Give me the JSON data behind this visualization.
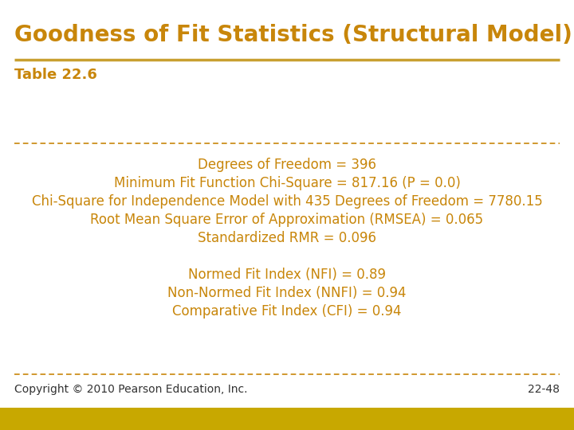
{
  "title": "Goodness of Fit Statistics (Structural Model)",
  "subtitle": "Table 22.6",
  "title_color": "#C8860A",
  "text_color": "#C8860A",
  "bg_color": "#FFFFFF",
  "footer_bg_color": "#C8A800",
  "title_fontsize": 20,
  "subtitle_fontsize": 13,
  "body_fontsize": 12,
  "footer_fontsize": 10,
  "top_rule_color": "#C8A030",
  "dashed_rule_color": "#C8860A",
  "body_lines": [
    "Degrees of Freedom = 396",
    "Minimum Fit Function Chi-Square = 817.16 (P = 0.0)",
    "Chi-Square for Independence Model with 435 Degrees of Freedom = 7780.15",
    "Root Mean Square Error of Approximation (RMSEA) = 0.065",
    "Standardized RMR = 0.096",
    "",
    "Normed Fit Index (NFI) = 0.89",
    "Non-Normed Fit Index (NNFI) = 0.94",
    "Comparative Fit Index (CFI) = 0.94"
  ],
  "footer_left": "Copyright © 2010 Pearson Education, Inc.",
  "footer_right": "22-48",
  "footer_text_color": "#333333"
}
